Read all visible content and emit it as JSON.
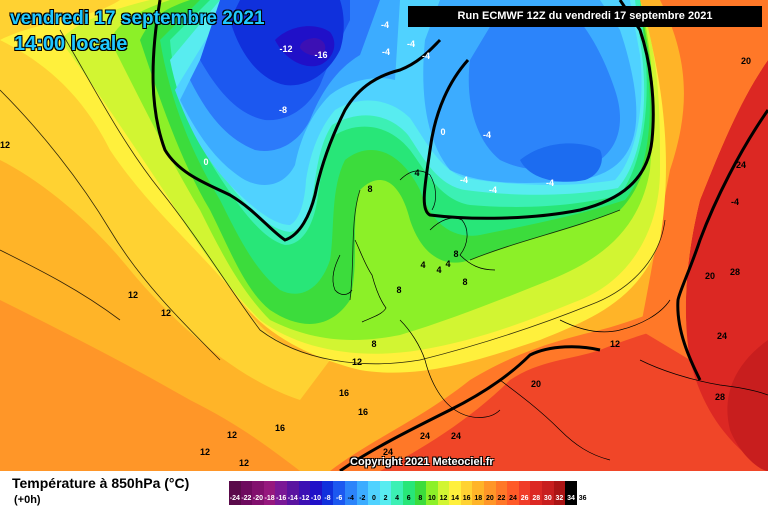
{
  "header": {
    "date": "vendredi 17 septembre 2021",
    "time": "14:00 locale",
    "run": "Run ECMWF 12Z du vendredi 17 septembre 2021"
  },
  "copyright": "Copyright 2021 Meteociel.fr",
  "legend": {
    "title": "Température à 850hPa (°C)",
    "subtitle": "(+0h)",
    "scale": [
      {
        "label": "-24",
        "color": "#5a0a4a",
        "text": "#ffffff"
      },
      {
        "label": "-22",
        "color": "#6e0a5e",
        "text": "#ffffff"
      },
      {
        "label": "-20",
        "color": "#82106e",
        "text": "#ffffff"
      },
      {
        "label": "-18",
        "color": "#96187e",
        "text": "#ffffff"
      },
      {
        "label": "-16",
        "color": "#7a1896",
        "text": "#ffffff"
      },
      {
        "label": "-14",
        "color": "#5a14a0",
        "text": "#ffffff"
      },
      {
        "label": "-12",
        "color": "#3c10b4",
        "text": "#ffffff"
      },
      {
        "label": "-10",
        "color": "#2010c8",
        "text": "#ffffff"
      },
      {
        "label": "-8",
        "color": "#1030dc",
        "text": "#ffffff"
      },
      {
        "label": "-6",
        "color": "#1c58f0",
        "text": "#ffffff"
      },
      {
        "label": "-4",
        "color": "#2c84fa",
        "text": "#000000"
      },
      {
        "label": "-2",
        "color": "#3cacff",
        "text": "#000000"
      },
      {
        "label": "0",
        "color": "#50d2ff",
        "text": "#000000"
      },
      {
        "label": "2",
        "color": "#58ecf0",
        "text": "#000000"
      },
      {
        "label": "4",
        "color": "#3cf0b4",
        "text": "#000000"
      },
      {
        "label": "6",
        "color": "#28e678",
        "text": "#000000"
      },
      {
        "label": "8",
        "color": "#3cdc3c",
        "text": "#000000"
      },
      {
        "label": "10",
        "color": "#8cf028",
        "text": "#000000"
      },
      {
        "label": "12",
        "color": "#d2f532",
        "text": "#000000"
      },
      {
        "label": "14",
        "color": "#fff03c",
        "text": "#000000"
      },
      {
        "label": "16",
        "color": "#ffd232",
        "text": "#000000"
      },
      {
        "label": "18",
        "color": "#ffb428",
        "text": "#000000"
      },
      {
        "label": "20",
        "color": "#ff9628",
        "text": "#000000"
      },
      {
        "label": "22",
        "color": "#ff7828",
        "text": "#000000"
      },
      {
        "label": "24",
        "color": "#ff5a28",
        "text": "#000000"
      },
      {
        "label": "26",
        "color": "#f03c28",
        "text": "#ffffff"
      },
      {
        "label": "28",
        "color": "#dc2823",
        "text": "#ffffff"
      },
      {
        "label": "30",
        "color": "#c81e1e",
        "text": "#ffffff"
      },
      {
        "label": "32",
        "color": "#aa1414",
        "text": "#ffffff"
      },
      {
        "label": "34",
        "color": "#000000",
        "text": "#ffffff"
      },
      {
        "label": "36",
        "color": "#ffffff",
        "text": "#000000"
      }
    ]
  },
  "map": {
    "colors": {
      "deep_blue": "#1c3ad8",
      "mid_blue": "#2c7afa",
      "light_blue": "#3cacff",
      "cyan": "#50d2ff",
      "pale_cyan": "#58ecf0",
      "aqua": "#3cf0b4",
      "green": "#28e678",
      "lime": "#8cf028",
      "yellow_green": "#d2f532",
      "yellow": "#fff03c",
      "gold": "#ffd232",
      "orange": "#ffb428",
      "dark_orange": "#ff9628",
      "red_orange": "#ff7828",
      "red": "#f04628",
      "dark_red": "#c81e1e"
    },
    "contour_labels": [
      "-4",
      "-12",
      "-16",
      "-4",
      "-4",
      "-4",
      "-8",
      "0",
      "0",
      "-4",
      "-4",
      "-4",
      "-4",
      "8",
      "4",
      "8",
      "4",
      "4",
      "8",
      "8",
      "8",
      "4",
      "12",
      "12",
      "12",
      "12",
      "12",
      "12",
      "12",
      "16",
      "16",
      "16",
      "12",
      "20",
      "24",
      "24",
      "24",
      "20",
      "20",
      "28",
      "24",
      "28",
      "24",
      "-4"
    ]
  }
}
